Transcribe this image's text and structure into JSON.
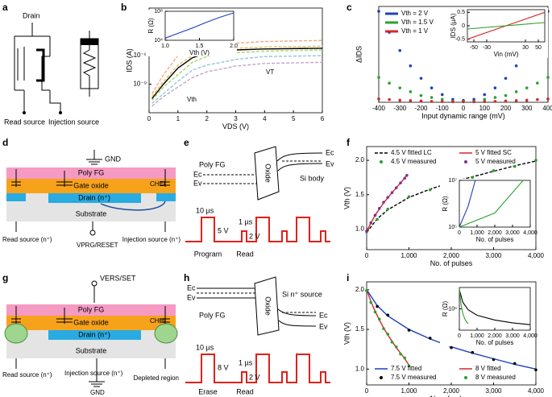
{
  "panel_labels": [
    "a",
    "b",
    "c",
    "d",
    "e",
    "f",
    "g",
    "h",
    "i"
  ],
  "diagrams": {
    "a": [
      "Drain",
      "Read source",
      "Injection source"
    ],
    "d": [
      "GND",
      "Poly FG",
      "Gate oxide",
      "Drain (n⁺)",
      "CHEI",
      "Substrate",
      "Read source (n⁺)",
      "VPRG/RESET",
      "Injection source (n⁺)"
    ],
    "e": [
      "Poly FG",
      "Ec",
      "Ev",
      "Oxide",
      "Si body",
      "Ec",
      "Ev",
      "10 µs",
      "5 V",
      "1 µs",
      "2 V",
      "Program",
      "Read"
    ],
    "g": [
      "VERS/SET",
      "Poly FG",
      "Gate oxide",
      "CHHI",
      "Drain (n⁺)",
      "Substrate",
      "Read source (n⁺)",
      "Injection source (n⁺)",
      "GND",
      "Depleted region"
    ],
    "h": [
      "Ec",
      "Ev",
      "Poly FG",
      "Oxide",
      "Si n⁺ source",
      "Ec",
      "Ev",
      "10 µs",
      "8 V",
      "1 µs",
      "2 V",
      "Erase",
      "Read"
    ]
  },
  "chart_data": [
    {
      "type": "line",
      "xlabel": "VDS (V)",
      "ylabel": "IDS (A)",
      "xlim": [
        0,
        6
      ],
      "xticks": [
        0,
        1,
        2,
        3,
        4,
        5,
        6
      ],
      "ylim": [
        1e-12,
        0.1
      ],
      "ylog": true,
      "yticks": [
        {
          "value": 1e-06,
          "label": "10⁻⁶"
        },
        {
          "value": 1e-09,
          "label": "10⁻⁹"
        }
      ],
      "annotations": [
        "Ith",
        "Vth",
        "VT"
      ],
      "series": [
        {
          "color": "#f4a582",
          "dashed": true,
          "x": [
            0.1,
            0.5,
            1,
            1.5,
            2,
            3,
            4,
            6
          ],
          "values": [
            1e-10,
            1e-08,
            1e-06,
            5e-06,
            1e-05,
            2e-05,
            3e-05,
            4e-05
          ]
        },
        {
          "color": "#e6c35c",
          "dashed": true,
          "x": [
            0.1,
            0.5,
            1,
            1.5,
            2,
            3,
            4,
            6
          ],
          "values": [
            5e-11,
            2e-09,
            1e-07,
            1e-06,
            3e-06,
            6e-06,
            8e-06,
            1e-05
          ]
        },
        {
          "color": "#a6d96a",
          "dashed": true,
          "x": [
            0.1,
            0.5,
            1,
            1.5,
            2,
            3,
            4,
            6
          ],
          "values": [
            2e-11,
            5e-10,
            1e-08,
            2e-07,
            8e-07,
            2e-06,
            3e-06,
            4e-06
          ]
        },
        {
          "color": "#92c5de",
          "dashed": true,
          "x": [
            0.1,
            0.5,
            1,
            1.5,
            2,
            3,
            4,
            6
          ],
          "values": [
            1e-11,
            1e-10,
            2e-09,
            3e-08,
            1e-07,
            4e-07,
            8e-07,
            1e-06
          ]
        },
        {
          "color": "#c2a5cf",
          "dashed": true,
          "x": [
            0.1,
            0.5,
            1,
            1.5,
            2,
            3,
            4,
            6
          ],
          "values": [
            5e-12,
            5e-11,
            5e-10,
            5e-09,
            2e-08,
            8e-08,
            1.5e-07,
            2e-07
          ]
        },
        {
          "color": "#000000",
          "x": [
            0.1,
            0.5,
            1,
            1.5,
            2,
            3,
            4,
            6
          ],
          "values": [
            3e-11,
            1e-09,
            5e-08,
            6e-07,
            2e-06,
            4e-06,
            5e-06,
            6e-06
          ]
        }
      ]
    },
    {
      "type": "line",
      "xlabel": "Vth (V)",
      "ylabel": "R (Ω)",
      "xlim": [
        1,
        2
      ],
      "xticks": [
        {
          "value": 1,
          "label": "1.0"
        },
        1.5,
        {
          "value": 2,
          "label": "2.0"
        }
      ],
      "ylim": [
        10000,
        100000000
      ],
      "ylog": true,
      "yticks": [
        {
          "value": 10000,
          "label": "10⁴"
        },
        {
          "value": 100000000,
          "label": "10⁸"
        }
      ],
      "series": [
        {
          "color": "#1f3fbf",
          "x": [
            1,
            1.2,
            1.4,
            1.6,
            1.8,
            2
          ],
          "values": [
            20000,
            100000,
            500000,
            3000000,
            15000000,
            60000000
          ]
        }
      ]
    },
    {
      "type": "scatter",
      "xlabel": "Input dynamic range (mV)",
      "ylabel": "ΔIDS",
      "xlim": [
        -400,
        400
      ],
      "xticks": [
        -400,
        -300,
        -200,
        -100,
        0,
        100,
        200,
        300,
        400
      ],
      "ylim": [
        0,
        1
      ],
      "legend": "upper left",
      "series": [
        {
          "name": "Vth = 2 V",
          "color": "#1f3fbf",
          "markers": true,
          "x": [
            -400,
            -350,
            -300,
            -250,
            -200,
            -150,
            -100,
            -50,
            0,
            50,
            100,
            150,
            200,
            250,
            300,
            350,
            400
          ],
          "values": [
            0.95,
            0.73,
            0.54,
            0.38,
            0.25,
            0.15,
            0.08,
            0.03,
            0.02,
            0.03,
            0.08,
            0.15,
            0.25,
            0.38,
            0.54,
            0.73,
            0.95
          ]
        },
        {
          "name": "Vth = 1.5 V",
          "color": "#2ca02c",
          "markers": true,
          "x": [
            -400,
            -350,
            -300,
            -250,
            -200,
            -150,
            -100,
            -50,
            0,
            50,
            100,
            150,
            200,
            250,
            300,
            350,
            400
          ],
          "values": [
            0.26,
            0.2,
            0.15,
            0.11,
            0.07,
            0.05,
            0.03,
            0.01,
            0.01,
            0.01,
            0.03,
            0.05,
            0.07,
            0.11,
            0.15,
            0.2,
            0.26
          ]
        },
        {
          "name": "Vth = 1 V",
          "color": "#d62728",
          "markers": true,
          "x": [
            -400,
            -350,
            -300,
            -250,
            -200,
            -150,
            -100,
            -50,
            0,
            50,
            100,
            150,
            200,
            250,
            300,
            350,
            400
          ],
          "values": [
            0.035,
            0.028,
            0.022,
            0.017,
            0.013,
            0.009,
            0.007,
            0.005,
            0.005,
            0.005,
            0.007,
            0.009,
            0.013,
            0.017,
            0.022,
            0.028,
            0.035
          ]
        }
      ]
    },
    {
      "type": "line",
      "xlabel": "Vin (mV)",
      "ylabel": "IDS (µA)",
      "xlim": [
        -60,
        60
      ],
      "xticks": [
        -50,
        -30,
        30,
        50
      ],
      "ylim": [
        -0.6,
        0.6
      ],
      "yticks": [
        0.5,
        0,
        -0.5
      ],
      "series": [
        {
          "color": "#d62728",
          "x": [
            -60,
            60
          ],
          "values": [
            -0.5,
            0.5
          ]
        },
        {
          "color": "#2ca02c",
          "x": [
            -60,
            60
          ],
          "values": [
            -0.12,
            0.12
          ]
        }
      ]
    },
    {
      "type": "line",
      "xlabel": "No. of pulses",
      "ylabel": "Vth (V)",
      "xlim": [
        0,
        4000
      ],
      "xticks": [
        0,
        {
          "value": 1000,
          "label": "1,000"
        },
        {
          "value": 2000,
          "label": "2,000"
        },
        {
          "value": 3000,
          "label": "3,000"
        },
        {
          "value": 4000,
          "label": "4,000"
        }
      ],
      "ylim": [
        0.7,
        2.2
      ],
      "yticks": [
        {
          "value": 1,
          "label": "1.0"
        },
        1.5,
        {
          "value": 2,
          "label": "2.0"
        }
      ],
      "legend": "upper",
      "series": [
        {
          "name": "4.5 V fitted LC",
          "color": "#000000",
          "dashed": true,
          "x": [
            0,
            250,
            500,
            1000,
            1500,
            2000,
            2500,
            3000,
            3500,
            4000
          ],
          "values": [
            0.95,
            1.15,
            1.28,
            1.46,
            1.58,
            1.68,
            1.76,
            1.84,
            1.92,
            1.99
          ]
        },
        {
          "name": "5 V fitted SC",
          "color": "#d62728",
          "x": [
            0,
            200,
            400,
            600,
            800,
            950
          ],
          "values": [
            0.97,
            1.2,
            1.38,
            1.53,
            1.67,
            1.78
          ]
        },
        {
          "name": "4.5 V measured",
          "color": "#2ca02c",
          "markers": true,
          "x": [
            0,
            250,
            500,
            1000,
            1500,
            2000,
            2500,
            3000,
            3500,
            4000
          ],
          "values": [
            0.96,
            1.14,
            1.29,
            1.47,
            1.57,
            1.69,
            1.75,
            1.85,
            1.91,
            2.0
          ]
        },
        {
          "name": "5 V measured",
          "color": "#7b3294",
          "markers": true,
          "x": [
            0,
            100,
            200,
            300,
            400,
            500,
            600,
            700,
            800,
            900,
            950
          ],
          "values": [
            0.97,
            1.09,
            1.2,
            1.3,
            1.39,
            1.46,
            1.53,
            1.6,
            1.67,
            1.74,
            1.78
          ]
        }
      ]
    },
    {
      "type": "line",
      "xlabel": "No. of pulses",
      "ylabel": "R (Ω)",
      "xlim": [
        0,
        4000
      ],
      "xticks": [
        0,
        {
          "value": 1000,
          "label": "1,000"
        },
        {
          "value": 2000,
          "label": "2,000"
        },
        {
          "value": 3000,
          "label": "3,000"
        },
        {
          "value": 4000,
          "label": "4,000"
        }
      ],
      "ylim": [
        100000,
        10000000
      ],
      "ylog": true,
      "yticks": [
        {
          "value": 100000,
          "label": "10⁵"
        },
        {
          "value": 10000000,
          "label": "10⁷"
        }
      ],
      "series": [
        {
          "color": "#1f3fbf",
          "x": [
            0,
            500,
            900
          ],
          "values": [
            100000,
            800000,
            10000000
          ]
        },
        {
          "color": "#2ca02c",
          "x": [
            0,
            2000,
            2200,
            3600
          ],
          "values": [
            100000,
            400000,
            600000,
            10000000
          ]
        }
      ]
    },
    {
      "type": "line",
      "xlabel": "No. of pulses",
      "ylabel": "Vth (V)",
      "xlim": [
        0,
        4000
      ],
      "xticks": [
        0,
        {
          "value": 1000,
          "label": "1,000"
        },
        {
          "value": 2000,
          "label": "2,000"
        },
        {
          "value": 3000,
          "label": "3,000"
        },
        {
          "value": 4000,
          "label": "4,000"
        }
      ],
      "ylim": [
        0.8,
        2.1
      ],
      "yticks": [
        {
          "value": 1,
          "label": "1.0"
        },
        1.5,
        {
          "value": 2,
          "label": "2.0"
        }
      ],
      "legend": "lower",
      "series": [
        {
          "name": "7.5 V fitted",
          "color": "#1f3fbf",
          "x": [
            0,
            250,
            500,
            1000,
            1500,
            2000,
            2500,
            3000,
            3500,
            4000
          ],
          "values": [
            2.0,
            1.8,
            1.67,
            1.5,
            1.38,
            1.28,
            1.2,
            1.13,
            1.06,
            1.0
          ]
        },
        {
          "name": "8 V fitted",
          "color": "#d62728",
          "x": [
            0,
            100,
            200,
            300,
            400,
            500,
            600,
            700,
            800,
            900,
            1000
          ],
          "values": [
            2.0,
            1.85,
            1.73,
            1.62,
            1.52,
            1.43,
            1.35,
            1.27,
            1.2,
            1.13,
            1.05
          ]
        },
        {
          "name": "7.5 V measured",
          "color": "#000000",
          "markers": true,
          "x": [
            0,
            250,
            500,
            1000,
            1500,
            2000,
            2500,
            3000,
            3500,
            4000
          ],
          "values": [
            1.99,
            1.79,
            1.68,
            1.49,
            1.39,
            1.27,
            1.21,
            1.12,
            1.07,
            0.99
          ]
        },
        {
          "name": "8 V measured",
          "color": "#2ca02c",
          "markers": true,
          "x": [
            0,
            100,
            200,
            300,
            400,
            500,
            600,
            700,
            800,
            900,
            1000
          ],
          "values": [
            1.99,
            1.84,
            1.72,
            1.63,
            1.51,
            1.44,
            1.34,
            1.28,
            1.19,
            1.14,
            1.04
          ]
        }
      ]
    },
    {
      "type": "line",
      "xlabel": "No. of pulses",
      "ylabel": "R (Ω)",
      "xlim": [
        0,
        4000
      ],
      "xticks": [
        0,
        {
          "value": 1000,
          "label": "1,000"
        },
        {
          "value": 2000,
          "label": "2,000"
        },
        {
          "value": 3000,
          "label": "3,000"
        },
        {
          "value": 4000,
          "label": "4,000"
        }
      ],
      "ylim": [
        100000,
        10000000
      ],
      "ylog": true,
      "yticks": [
        {
          "value": 1000000,
          "label": "10⁶"
        }
      ],
      "series": [
        {
          "color": "#000000",
          "x": [
            0,
            200,
            500,
            1000,
            2000,
            3000,
            4000
          ],
          "values": [
            8000000,
            2000000,
            900000,
            500000,
            300000,
            220000,
            180000
          ]
        },
        {
          "color": "#2ca02c",
          "x": [
            0,
            100,
            200,
            300,
            400,
            500
          ],
          "values": [
            8000000,
            1500000,
            600000,
            350000,
            250000,
            200000
          ]
        }
      ]
    }
  ]
}
